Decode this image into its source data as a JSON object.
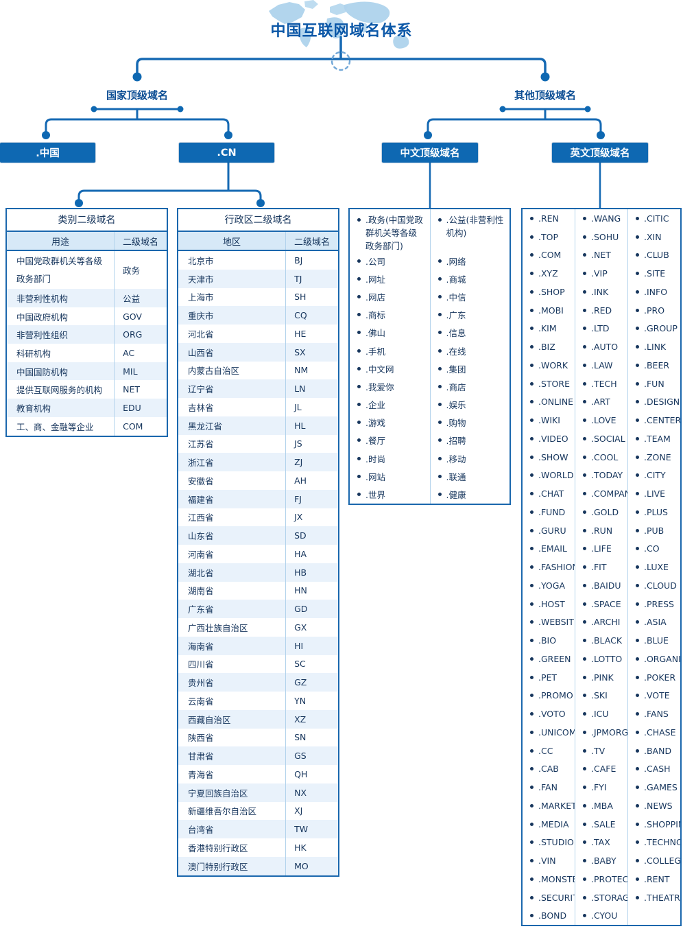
{
  "title": "中国互联网域名体系",
  "tree": {
    "country": {
      "label": "国家顶级域名",
      "nodes": [
        {
          "label": ".中国"
        },
        {
          "label": ".CN"
        }
      ]
    },
    "other": {
      "label": "其他顶级域名",
      "nodes": [
        {
          "label": "中文顶级域名"
        },
        {
          "label": "英文顶级域名"
        }
      ]
    }
  },
  "category_table": {
    "title": "类别二级域名",
    "headers": [
      "用途",
      "二级域名"
    ],
    "rows": [
      [
        "中国党政群机关等各级政务部门",
        "政务"
      ],
      [
        "非营利性机构",
        "公益"
      ],
      [
        "中国政府机构",
        "GOV"
      ],
      [
        "非营利性组织",
        "ORG"
      ],
      [
        "科研机构",
        "AC"
      ],
      [
        "中国国防机构",
        "MIL"
      ],
      [
        "提供互联网服务的机构",
        "NET"
      ],
      [
        "教育机构",
        "EDU"
      ],
      [
        "工、商、金融等企业",
        "COM"
      ]
    ]
  },
  "admin_table": {
    "title": "行政区二级域名",
    "headers": [
      "地区",
      "二级域名"
    ],
    "rows": [
      [
        "北京市",
        "BJ"
      ],
      [
        "天津市",
        "TJ"
      ],
      [
        "上海市",
        "SH"
      ],
      [
        "重庆市",
        "CQ"
      ],
      [
        "河北省",
        "HE"
      ],
      [
        "山西省",
        "SX"
      ],
      [
        "内蒙古自治区",
        "NM"
      ],
      [
        "辽宁省",
        "LN"
      ],
      [
        "吉林省",
        "JL"
      ],
      [
        "黑龙江省",
        "HL"
      ],
      [
        "江苏省",
        "JS"
      ],
      [
        "浙江省",
        "ZJ"
      ],
      [
        "安徽省",
        "AH"
      ],
      [
        "福建省",
        "FJ"
      ],
      [
        "江西省",
        "JX"
      ],
      [
        "山东省",
        "SD"
      ],
      [
        "河南省",
        "HA"
      ],
      [
        "湖北省",
        "HB"
      ],
      [
        "湖南省",
        "HN"
      ],
      [
        "广东省",
        "GD"
      ],
      [
        "广西壮族自治区",
        "GX"
      ],
      [
        "海南省",
        "HI"
      ],
      [
        "四川省",
        "SC"
      ],
      [
        "贵州省",
        "GZ"
      ],
      [
        "云南省",
        "YN"
      ],
      [
        "西藏自治区",
        "XZ"
      ],
      [
        "陕西省",
        "SN"
      ],
      [
        "甘肃省",
        "GS"
      ],
      [
        "青海省",
        "QH"
      ],
      [
        "宁夏回族自治区",
        "NX"
      ],
      [
        "新疆维吾尔自治区",
        "XJ"
      ],
      [
        "台湾省",
        "TW"
      ],
      [
        "香港特别行政区",
        "HK"
      ],
      [
        "澳门特别行政区",
        "MO"
      ]
    ]
  },
  "chinese_tlds": {
    "rows": [
      [
        ".政务(中国党政群机关等各级政务部门)",
        ".公益(非营利性机构)"
      ],
      [
        ".公司",
        ".网络"
      ],
      [
        ".网址",
        ".商城"
      ],
      [
        ".网店",
        ".中信"
      ],
      [
        ".商标",
        ".广东"
      ],
      [
        ".佛山",
        ".信息"
      ],
      [
        ".手机",
        ".在线"
      ],
      [
        ".中文网",
        ".集团"
      ],
      [
        ".我爱你",
        ".商店"
      ],
      [
        ".企业",
        ".娱乐"
      ],
      [
        ".游戏",
        ".购物"
      ],
      [
        ".餐厅",
        ".招聘"
      ],
      [
        ".时尚",
        ".移动"
      ],
      [
        ".网站",
        ".联通"
      ],
      [
        ".世界",
        ".健康"
      ]
    ]
  },
  "english_tlds": {
    "rows": [
      [
        ".REN",
        ".WANG",
        ".CITIC"
      ],
      [
        ".TOP",
        ".SOHU",
        ".XIN"
      ],
      [
        ".COM",
        ".NET",
        ".CLUB"
      ],
      [
        ".XYZ",
        ".VIP",
        ".SITE"
      ],
      [
        ".SHOP",
        ".INK",
        ".INFO"
      ],
      [
        ".MOBI",
        ".RED",
        ".PRO"
      ],
      [
        ".KIM",
        ".LTD",
        ".GROUP"
      ],
      [
        ".BIZ",
        ".AUTO",
        ".LINK"
      ],
      [
        ".WORK",
        ".LAW",
        ".BEER"
      ],
      [
        ".STORE",
        ".TECH",
        ".FUN"
      ],
      [
        ".ONLINE",
        ".ART",
        ".DESIGN"
      ],
      [
        ".WIKI",
        ".LOVE",
        ".CENTER"
      ],
      [
        ".VIDEO",
        ".SOCIAL",
        ".TEAM"
      ],
      [
        ".SHOW",
        ".COOL",
        ".ZONE"
      ],
      [
        ".WORLD",
        ".TODAY",
        ".CITY"
      ],
      [
        ".CHAT",
        ".COMPANY",
        ".LIVE"
      ],
      [
        ".FUND",
        ".GOLD",
        ".PLUS"
      ],
      [
        ".GURU",
        ".RUN",
        ".PUB"
      ],
      [
        ".EMAIL",
        ".LIFE",
        ".CO"
      ],
      [
        ".FASHION",
        ".FIT",
        ".LUXE"
      ],
      [
        ".YOGA",
        ".BAIDU",
        ".CLOUD"
      ],
      [
        ".HOST",
        ".SPACE",
        ".PRESS"
      ],
      [
        ".WEBSITE",
        ".ARCHI",
        ".ASIA"
      ],
      [
        ".BIO",
        ".BLACK",
        ".BLUE"
      ],
      [
        ".GREEN",
        ".LOTTO",
        ".ORGANIC"
      ],
      [
        ".PET",
        ".PINK",
        ".POKER"
      ],
      [
        ".PROMO",
        ".SKI",
        ".VOTE"
      ],
      [
        ".VOTO",
        ".ICU",
        ".FANS"
      ],
      [
        ".UNICOM",
        ".JPMORGAN",
        ".CHASE"
      ],
      [
        ".CC",
        ".TV",
        ".BAND"
      ],
      [
        ".CAB",
        ".CAFE",
        ".CASH"
      ],
      [
        ".FAN",
        ".FYI",
        ".GAMES"
      ],
      [
        ".MARKET",
        ".MBA",
        ".NEWS"
      ],
      [
        ".MEDIA",
        ".SALE",
        ".SHOPPING"
      ],
      [
        ".STUDIO",
        ".TAX",
        ".TECHNOLOGY"
      ],
      [
        ".VIN",
        ".BABY",
        ".COLLEGE"
      ],
      [
        ".MONSTER",
        ".PROTECTION",
        ".RENT"
      ],
      [
        ".SECURITY",
        ".STORAGE",
        ".THEATRE"
      ],
      [
        ".BOND",
        ".CYOU",
        ""
      ]
    ]
  },
  "colors": {
    "node_blue": "#0e68b2",
    "line_blue": "#1569b3",
    "text_navy": "#17365d",
    "title_blue": "#0b57a7",
    "label_blue": "#0d4e94",
    "zebra": "#e9f2fb",
    "header_bg": "#d7e9f7",
    "border": "#1a67ad",
    "divider": "#b3d3ec",
    "map": "#aed3ec"
  }
}
